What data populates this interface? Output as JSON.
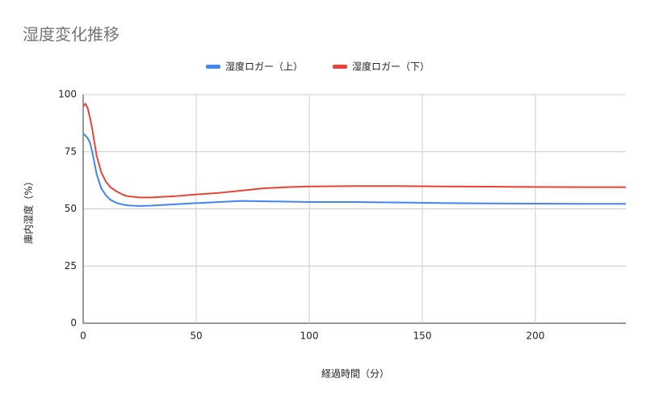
{
  "chart_data": {
    "type": "line",
    "title": "湿度変化推移",
    "x_label": "経過時間（分）",
    "y_label": "庫内湿度（%）",
    "x": [
      0,
      1,
      2,
      3,
      4,
      5,
      6,
      8,
      10,
      12,
      15,
      18,
      20,
      25,
      30,
      40,
      50,
      60,
      70,
      80,
      90,
      100,
      120,
      140,
      160,
      180,
      200,
      220,
      240
    ],
    "series": [
      {
        "name": "湿度ロガー（上）",
        "color": "#4285f4",
        "values": [
          83,
          82,
          81,
          79,
          75,
          70,
          65,
          59,
          56,
          54,
          52.5,
          51.8,
          51.5,
          51.3,
          51.4,
          52,
          52.5,
          53,
          53.5,
          53.3,
          53.2,
          53,
          53,
          52.8,
          52.5,
          52.4,
          52.3,
          52.2,
          52.2
        ]
      },
      {
        "name": "湿度ロガー（下）",
        "color": "#ea4335",
        "values": [
          95,
          96,
          94,
          90,
          85,
          79,
          73,
          66,
          62,
          59.5,
          57.5,
          56,
          55.5,
          55,
          55,
          55.5,
          56.3,
          57,
          58,
          59,
          59.5,
          59.8,
          60,
          60,
          59.8,
          59.7,
          59.6,
          59.5,
          59.5
        ]
      }
    ],
    "xlim": [
      0,
      240
    ],
    "xticks": [
      0,
      50,
      100,
      150,
      200
    ],
    "ylim": [
      0,
      100
    ],
    "yticks": [
      0,
      25,
      50,
      75,
      100
    ],
    "grid": true,
    "legend": "top"
  }
}
